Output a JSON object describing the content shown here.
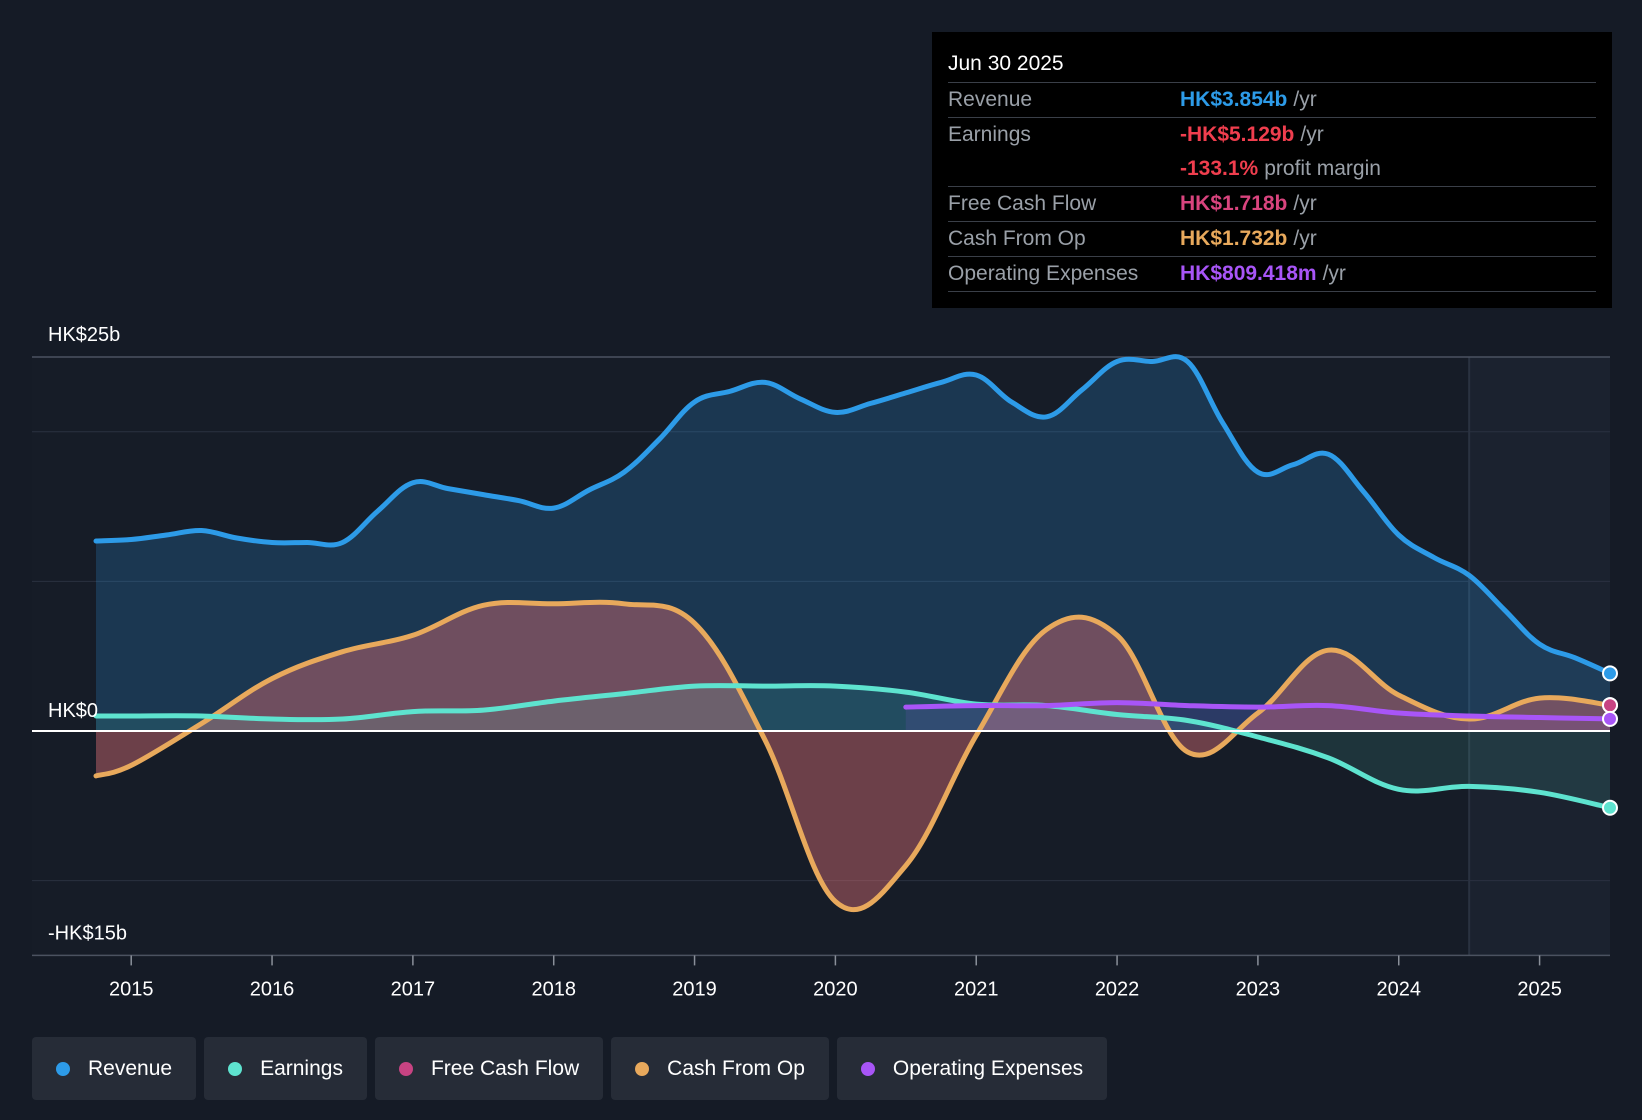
{
  "tooltip": {
    "date": "Jun 30 2025",
    "rows": [
      {
        "label": "Revenue",
        "value": "HK$3.854b",
        "unit": "/yr",
        "color": "#2d9be8"
      },
      {
        "label": "Earnings",
        "value": "-HK$5.129b",
        "unit": "/yr",
        "color": "#f03e4e"
      },
      {
        "label": "",
        "value": "-133.1%",
        "unit": "profit margin",
        "color": "#f03e4e"
      },
      {
        "label": "Free Cash Flow",
        "value": "HK$1.718b",
        "unit": "/yr",
        "color": "#d9447e"
      },
      {
        "label": "Cash From Op",
        "value": "HK$1.732b",
        "unit": "/yr",
        "color": "#e8a95c"
      },
      {
        "label": "Operating Expenses",
        "value": "HK$809.418m",
        "unit": "/yr",
        "color": "#a855f7"
      }
    ]
  },
  "legend": [
    {
      "label": "Revenue",
      "color": "#2d9be8"
    },
    {
      "label": "Earnings",
      "color": "#5ee3cf"
    },
    {
      "label": "Free Cash Flow",
      "color": "#c74382"
    },
    {
      "label": "Cash From Op",
      "color": "#e8a95c"
    },
    {
      "label": "Operating Expenses",
      "color": "#a855f7"
    }
  ],
  "chart_data": {
    "type": "line",
    "title": "",
    "xlabel": "",
    "ylabel": "",
    "ylim": [
      -15,
      25
    ],
    "xlim": [
      2014.75,
      2025.5
    ],
    "y_labels": [
      {
        "value": 25,
        "text": "HK$25b"
      },
      {
        "value": 0,
        "text": "HK$0"
      },
      {
        "value": -15,
        "text": "-HK$15b"
      }
    ],
    "gridlines": [
      25,
      20,
      10,
      0,
      -10
    ],
    "xticks": [
      2015,
      2016,
      2017,
      2018,
      2019,
      2020,
      2021,
      2022,
      2023,
      2024,
      2025
    ],
    "xtick_labels": [
      "2015",
      "2016",
      "2017",
      "2018",
      "2019",
      "2020",
      "2021",
      "2022",
      "2023",
      "2024",
      "2025"
    ],
    "forecast_start": 2024.5,
    "series": [
      {
        "name": "Revenue",
        "color": "#2d9be8",
        "x": [
          2014.75,
          2015.0,
          2015.25,
          2015.5,
          2015.75,
          2016.0,
          2016.25,
          2016.5,
          2016.75,
          2017.0,
          2017.25,
          2017.5,
          2017.75,
          2018.0,
          2018.25,
          2018.5,
          2018.75,
          2019.0,
          2019.25,
          2019.5,
          2019.75,
          2020.0,
          2020.25,
          2020.5,
          2020.75,
          2021.0,
          2021.25,
          2021.5,
          2021.75,
          2022.0,
          2022.25,
          2022.5,
          2022.75,
          2023.0,
          2023.25,
          2023.5,
          2023.75,
          2024.0,
          2024.25,
          2024.5,
          2024.75,
          2025.0,
          2025.25,
          2025.5
        ],
        "values": [
          12.7,
          12.8,
          13.1,
          13.4,
          12.9,
          12.6,
          12.6,
          12.6,
          14.7,
          16.6,
          16.2,
          15.8,
          15.4,
          14.9,
          16.1,
          17.3,
          19.5,
          22.0,
          22.7,
          23.3,
          22.2,
          21.3,
          21.9,
          22.6,
          23.3,
          23.8,
          22.0,
          21.0,
          22.8,
          24.7,
          24.7,
          24.7,
          20.6,
          17.3,
          17.8,
          18.5,
          16.0,
          13.1,
          11.6,
          10.4,
          8.1,
          5.8,
          4.9,
          3.854
        ]
      },
      {
        "name": "Earnings",
        "color": "#5ee3cf",
        "x": [
          2014.75,
          2015.0,
          2015.5,
          2016.0,
          2016.5,
          2017.0,
          2017.5,
          2018.0,
          2018.5,
          2019.0,
          2019.5,
          2020.0,
          2020.5,
          2021.0,
          2021.5,
          2022.0,
          2022.5,
          2023.0,
          2023.5,
          2024.0,
          2024.5,
          2025.0,
          2025.5
        ],
        "values": [
          1.0,
          1.0,
          1.0,
          0.8,
          0.8,
          1.3,
          1.4,
          2.0,
          2.5,
          3.0,
          3.0,
          3.0,
          2.6,
          1.8,
          1.7,
          1.1,
          0.7,
          -0.4,
          -1.8,
          -3.9,
          -3.7,
          -4.1,
          -5.129
        ]
      },
      {
        "name": "Free Cash Flow",
        "color": "#c74382",
        "x": [
          2014.75,
          2015.0,
          2015.5,
          2016.0,
          2016.5,
          2017.0,
          2017.5,
          2018.0,
          2018.5,
          2019.0,
          2019.5,
          2020.0,
          2020.5,
          2021.0,
          2021.5,
          2022.0,
          2022.5,
          2023.0,
          2023.5,
          2024.0,
          2024.5,
          2025.0,
          2025.5
        ],
        "values": [
          -3.0,
          -2.3,
          0.5,
          3.5,
          5.3,
          6.4,
          8.4,
          8.5,
          8.5,
          7.2,
          -0.6,
          -11.4,
          -9.0,
          -0.3,
          6.8,
          6.4,
          -1.4,
          1.2,
          5.4,
          2.4,
          0.8,
          2.2,
          1.718
        ]
      },
      {
        "name": "Cash From Op",
        "color": "#e8a95c",
        "x": [
          2014.75,
          2015.0,
          2015.5,
          2016.0,
          2016.5,
          2017.0,
          2017.5,
          2018.0,
          2018.5,
          2019.0,
          2019.5,
          2020.0,
          2020.5,
          2021.0,
          2021.5,
          2022.0,
          2022.5,
          2023.0,
          2023.5,
          2024.0,
          2024.5,
          2025.0,
          2025.5
        ],
        "values": [
          -3.0,
          -2.3,
          0.5,
          3.5,
          5.3,
          6.4,
          8.4,
          8.5,
          8.5,
          7.2,
          -0.6,
          -11.4,
          -9.0,
          -0.3,
          6.8,
          6.4,
          -1.4,
          1.2,
          5.4,
          2.4,
          0.8,
          2.2,
          1.732
        ]
      },
      {
        "name": "Operating Expenses",
        "color": "#a855f7",
        "x": [
          2020.5,
          2021.0,
          2021.5,
          2022.0,
          2022.5,
          2023.0,
          2023.5,
          2024.0,
          2024.5,
          2025.0,
          2025.5
        ],
        "values": [
          1.6,
          1.7,
          1.7,
          1.9,
          1.7,
          1.6,
          1.7,
          1.2,
          1.0,
          0.9,
          0.809
        ]
      }
    ]
  }
}
